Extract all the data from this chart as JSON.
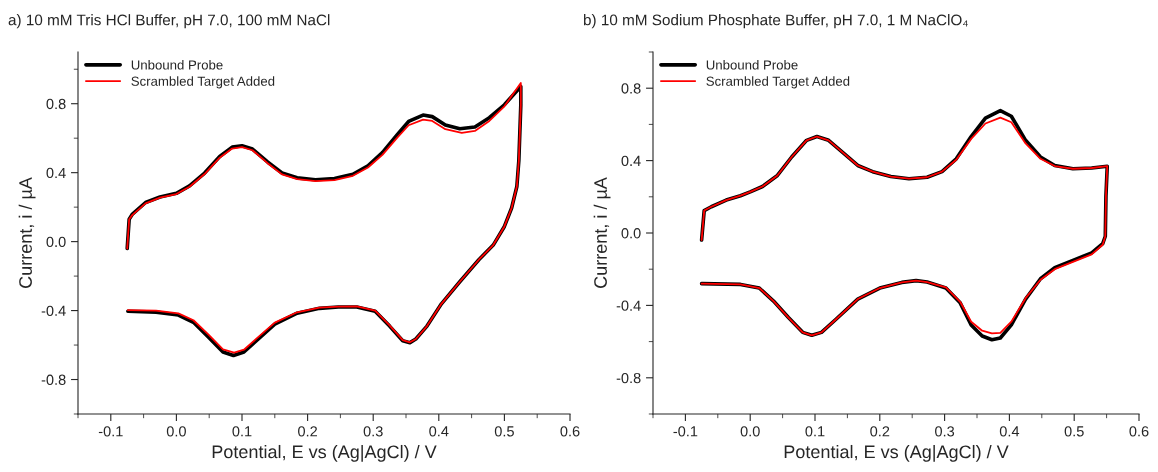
{
  "chart_data": [
    {
      "type": "line",
      "title": "a) 10 mM Tris HCl Buffer, pH 7.0, 100 mM NaCl",
      "xlabel": "Potential, E vs (Ag|AgCl) / V",
      "ylabel": "Current, i / µA",
      "legend": "top left",
      "grid": false,
      "line_style": "solid",
      "marker": "none",
      "xlim": [
        -0.15,
        0.6
      ],
      "ylim": [
        -1.0,
        1.1
      ],
      "xticks": [
        {
          "value": -0.15,
          "label": null
        },
        -0.1,
        {
          "value": -0.05,
          "label": null
        },
        {
          "value": 0,
          "label": "0.0"
        },
        {
          "value": 0.05,
          "label": null
        },
        0.1,
        {
          "value": 0.15,
          "label": null
        },
        0.2,
        {
          "value": 0.25,
          "label": null
        },
        0.3,
        {
          "value": 0.35,
          "label": null
        },
        0.4,
        {
          "value": 0.45,
          "label": null
        },
        0.5,
        {
          "value": 0.55,
          "label": null
        },
        0.6
      ],
      "yticks": [
        {
          "value": -1.0,
          "label": null
        },
        -0.8,
        {
          "value": -0.6,
          "label": null
        },
        -0.4,
        {
          "value": -0.2,
          "label": null
        },
        {
          "value": 0,
          "label": "0.0"
        },
        {
          "value": 0.2,
          "label": null
        },
        0.4,
        {
          "value": 0.6,
          "label": null
        },
        0.8,
        {
          "value": 1.0,
          "label": null
        }
      ],
      "series": [
        {
          "name": "Unbound Probe",
          "color": "#000000",
          "x": [
            -0.075,
            -0.072,
            -0.067,
            -0.047,
            -0.025,
            0.0,
            0.02,
            0.043,
            0.066,
            0.085,
            0.1,
            0.116,
            0.139,
            0.161,
            0.184,
            0.212,
            0.241,
            0.269,
            0.292,
            0.314,
            0.337,
            0.354,
            0.376,
            0.39,
            0.41,
            0.432,
            0.455,
            0.477,
            0.5,
            0.525,
            0.525,
            0.522,
            0.519,
            0.511,
            0.5,
            0.483,
            0.461,
            0.432,
            0.404,
            0.382,
            0.365,
            0.356,
            0.345,
            0.325,
            0.303,
            0.275,
            0.247,
            0.218,
            0.184,
            0.15,
            0.122,
            0.103,
            0.087,
            0.071,
            0.049,
            0.026,
            0.003,
            -0.031,
            -0.074
          ],
          "values": [
            -0.04,
            0.13,
            0.16,
            0.227,
            0.259,
            0.28,
            0.323,
            0.398,
            0.494,
            0.548,
            0.556,
            0.537,
            0.462,
            0.398,
            0.37,
            0.359,
            0.366,
            0.391,
            0.44,
            0.516,
            0.622,
            0.697,
            0.734,
            0.725,
            0.676,
            0.655,
            0.665,
            0.719,
            0.794,
            0.9,
            0.79,
            0.47,
            0.32,
            0.195,
            0.088,
            -0.02,
            -0.105,
            -0.233,
            -0.361,
            -0.49,
            -0.565,
            -0.586,
            -0.575,
            -0.49,
            -0.404,
            -0.379,
            -0.379,
            -0.387,
            -0.415,
            -0.479,
            -0.575,
            -0.64,
            -0.661,
            -0.64,
            -0.554,
            -0.468,
            -0.426,
            -0.409,
            -0.404
          ]
        },
        {
          "name": "Scrambled Target Added",
          "color": "#ff0000",
          "x": [
            -0.075,
            -0.072,
            -0.067,
            -0.047,
            -0.025,
            0.0,
            0.02,
            0.043,
            0.066,
            0.085,
            0.1,
            0.116,
            0.139,
            0.161,
            0.184,
            0.212,
            0.241,
            0.269,
            0.292,
            0.314,
            0.337,
            0.354,
            0.376,
            0.39,
            0.41,
            0.435,
            0.455,
            0.477,
            0.5,
            0.525,
            0.525,
            0.522,
            0.519,
            0.511,
            0.5,
            0.483,
            0.461,
            0.432,
            0.404,
            0.382,
            0.365,
            0.356,
            0.345,
            0.325,
            0.303,
            0.275,
            0.247,
            0.218,
            0.184,
            0.15,
            0.122,
            0.103,
            0.088,
            0.071,
            0.049,
            0.026,
            0.003,
            -0.031,
            -0.074
          ],
          "values": [
            -0.04,
            0.13,
            0.155,
            0.222,
            0.255,
            0.276,
            0.318,
            0.392,
            0.487,
            0.54,
            0.548,
            0.53,
            0.455,
            0.39,
            0.362,
            0.351,
            0.357,
            0.382,
            0.43,
            0.503,
            0.605,
            0.675,
            0.708,
            0.7,
            0.652,
            0.631,
            0.642,
            0.7,
            0.785,
            0.92,
            0.79,
            0.47,
            0.32,
            0.195,
            0.088,
            -0.02,
            -0.105,
            -0.233,
            -0.361,
            -0.49,
            -0.565,
            -0.584,
            -0.572,
            -0.486,
            -0.4,
            -0.376,
            -0.377,
            -0.383,
            -0.41,
            -0.47,
            -0.563,
            -0.627,
            -0.644,
            -0.625,
            -0.54,
            -0.456,
            -0.416,
            -0.4,
            -0.397
          ]
        }
      ]
    },
    {
      "type": "line",
      "title": "b) 10 mM Sodium Phosphate Buffer, pH 7.0, 1 M NaClO₄",
      "xlabel": "Potential, E vs (Ag|AgCl) / V",
      "ylabel": "Current, i / µA",
      "legend": "top left",
      "grid": false,
      "line_style": "solid",
      "marker": "none",
      "xlim": [
        -0.15,
        0.6
      ],
      "ylim": [
        -1.0,
        1.0
      ],
      "xticks": [
        {
          "value": -0.15,
          "label": null
        },
        -0.1,
        {
          "value": -0.05,
          "label": null
        },
        {
          "value": 0,
          "label": "0.0"
        },
        {
          "value": 0.05,
          "label": null
        },
        0.1,
        {
          "value": 0.15,
          "label": null
        },
        0.2,
        {
          "value": 0.25,
          "label": null
        },
        0.3,
        {
          "value": 0.35,
          "label": null
        },
        0.4,
        {
          "value": 0.45,
          "label": null
        },
        0.5,
        {
          "value": 0.55,
          "label": null
        },
        0.6
      ],
      "yticks": [
        {
          "value": -1.0,
          "label": null
        },
        -0.8,
        {
          "value": -0.6,
          "label": null
        },
        -0.4,
        {
          "value": -0.2,
          "label": null
        },
        {
          "value": 0,
          "label": "0.0"
        },
        {
          "value": 0.2,
          "label": null
        },
        0.4,
        {
          "value": 0.6,
          "label": null
        },
        0.8,
        {
          "value": 1.0,
          "label": null
        }
      ],
      "series": [
        {
          "name": "Unbound Probe",
          "color": "#000000",
          "x": [
            -0.075,
            -0.071,
            -0.06,
            -0.037,
            -0.015,
            0.0,
            0.019,
            0.042,
            0.064,
            0.087,
            0.103,
            0.121,
            0.144,
            0.166,
            0.189,
            0.217,
            0.245,
            0.273,
            0.296,
            0.318,
            0.341,
            0.363,
            0.386,
            0.403,
            0.425,
            0.448,
            0.47,
            0.498,
            0.527,
            0.551,
            0.549,
            0.548,
            0.544,
            0.527,
            0.498,
            0.47,
            0.448,
            0.425,
            0.403,
            0.386,
            0.373,
            0.358,
            0.341,
            0.324,
            0.302,
            0.273,
            0.256,
            0.234,
            0.2,
            0.166,
            0.132,
            0.11,
            0.095,
            0.081,
            0.059,
            0.036,
            0.014,
            -0.015,
            -0.075
          ],
          "values": [
            -0.039,
            0.124,
            0.145,
            0.182,
            0.206,
            0.227,
            0.257,
            0.318,
            0.42,
            0.512,
            0.533,
            0.512,
            0.441,
            0.373,
            0.339,
            0.312,
            0.3,
            0.308,
            0.339,
            0.41,
            0.533,
            0.635,
            0.676,
            0.645,
            0.512,
            0.42,
            0.373,
            0.355,
            0.359,
            0.369,
            0.206,
            -0.018,
            -0.059,
            -0.11,
            -0.151,
            -0.192,
            -0.253,
            -0.365,
            -0.508,
            -0.58,
            -0.59,
            -0.569,
            -0.508,
            -0.386,
            -0.304,
            -0.271,
            -0.263,
            -0.273,
            -0.304,
            -0.365,
            -0.478,
            -0.549,
            -0.565,
            -0.549,
            -0.467,
            -0.376,
            -0.304,
            -0.284,
            -0.28
          ]
        },
        {
          "name": "Scrambled Target Added",
          "color": "#ff0000",
          "x": [
            -0.075,
            -0.071,
            -0.06,
            -0.037,
            -0.015,
            0.0,
            0.019,
            0.042,
            0.064,
            0.087,
            0.103,
            0.121,
            0.144,
            0.166,
            0.189,
            0.217,
            0.245,
            0.273,
            0.296,
            0.318,
            0.341,
            0.363,
            0.386,
            0.403,
            0.425,
            0.448,
            0.47,
            0.498,
            0.527,
            0.551,
            0.549,
            0.548,
            0.544,
            0.527,
            0.498,
            0.47,
            0.448,
            0.425,
            0.403,
            0.386,
            0.373,
            0.358,
            0.341,
            0.324,
            0.302,
            0.273,
            0.256,
            0.234,
            0.2,
            0.166,
            0.132,
            0.11,
            0.095,
            0.081,
            0.059,
            0.036,
            0.014,
            -0.015,
            -0.075
          ],
          "values": [
            -0.039,
            0.124,
            0.145,
            0.182,
            0.206,
            0.227,
            0.257,
            0.318,
            0.42,
            0.512,
            0.533,
            0.512,
            0.441,
            0.373,
            0.339,
            0.312,
            0.3,
            0.308,
            0.339,
            0.405,
            0.52,
            0.605,
            0.637,
            0.612,
            0.495,
            0.41,
            0.37,
            0.355,
            0.359,
            0.369,
            0.206,
            -0.018,
            -0.065,
            -0.118,
            -0.16,
            -0.2,
            -0.258,
            -0.36,
            -0.49,
            -0.552,
            -0.555,
            -0.54,
            -0.49,
            -0.38,
            -0.3,
            -0.271,
            -0.263,
            -0.273,
            -0.304,
            -0.365,
            -0.478,
            -0.549,
            -0.565,
            -0.549,
            -0.467,
            -0.376,
            -0.304,
            -0.284,
            -0.28
          ]
        }
      ]
    }
  ]
}
